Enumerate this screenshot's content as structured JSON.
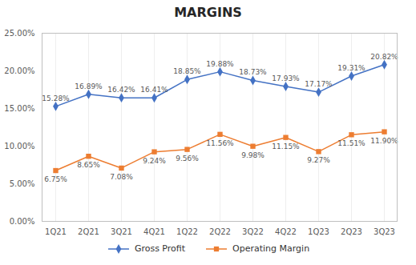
{
  "chart_data": {
    "type": "line",
    "title": "MARGINS",
    "categories": [
      "1Q21",
      "2Q21",
      "3Q21",
      "4Q21",
      "1Q22",
      "2Q22",
      "3Q22",
      "4Q22",
      "1Q23",
      "2Q23",
      "3Q23"
    ],
    "series": [
      {
        "name": "Gross Profit",
        "color": "#4472C4",
        "marker": "diamond",
        "values": [
          15.28,
          16.89,
          16.42,
          16.41,
          18.85,
          19.88,
          18.73,
          17.93,
          17.17,
          19.31,
          20.82
        ],
        "value_labels": [
          "15.28%",
          "16.89%",
          "16.42%",
          "16.41%",
          "18.85%",
          "19.88%",
          "18.73%",
          "17.93%",
          "17.17%",
          "19.31%",
          "20.82%"
        ]
      },
      {
        "name": "Operating Margin",
        "color": "#ED7D31",
        "marker": "square",
        "values": [
          6.75,
          8.65,
          7.08,
          9.24,
          9.56,
          11.56,
          9.98,
          11.15,
          9.27,
          11.51,
          11.9
        ],
        "value_labels": [
          "6.75%",
          "8.65%",
          "7.08%",
          "9.24%",
          "9.56%",
          "11.56%",
          "9.98%",
          "11.15%",
          "9.27%",
          "11.51%",
          "11.90%"
        ]
      }
    ],
    "ylim": [
      0,
      25
    ],
    "yticks": [
      {
        "value": 0,
        "label": "0.00%"
      },
      {
        "value": 5,
        "label": "5.00%"
      },
      {
        "value": 10,
        "label": "10.00%"
      },
      {
        "value": 15,
        "label": "15.00%"
      },
      {
        "value": 20,
        "label": "20.00%"
      },
      {
        "value": 25,
        "label": "25.00%"
      }
    ],
    "grid": "x",
    "legend": "bottom",
    "data_labels": true
  }
}
